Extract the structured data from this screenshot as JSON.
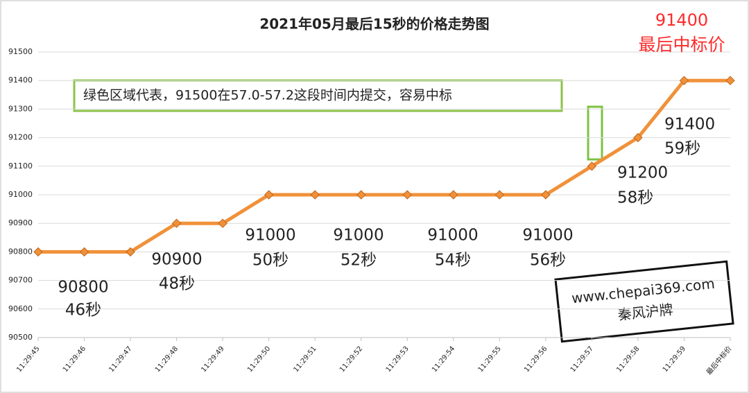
{
  "chart_data": {
    "type": "line",
    "title": "2021年05月最后15秒的价格走势图",
    "categories": [
      "11:29:45",
      "11:29:46",
      "11:29:47",
      "11:29:48",
      "11:29:49",
      "11:29:50",
      "11:29:51",
      "11:29:52",
      "11:29:53",
      "11:29:54",
      "11:29:55",
      "11:29:56",
      "11:29:57",
      "11:29:58",
      "11:29:59",
      "最后中标价"
    ],
    "values": [
      90800,
      90800,
      90800,
      90900,
      90900,
      91000,
      91000,
      91000,
      91000,
      91000,
      91000,
      91000,
      91100,
      91200,
      91400,
      91400
    ],
    "color": "#F0913A",
    "ylim": [
      90500,
      91500
    ],
    "yticks": [
      90500,
      90600,
      90700,
      90800,
      90900,
      91000,
      91100,
      91200,
      91300,
      91400,
      91500
    ],
    "grid": true,
    "annotations": [
      [
        "90800",
        "46秒"
      ],
      [
        "90900",
        "48秒"
      ],
      [
        "91000",
        "50秒"
      ],
      [
        "91000",
        "52秒"
      ],
      [
        "91000",
        "54秒"
      ],
      [
        "91000",
        "56秒"
      ],
      [
        "91200",
        "58秒"
      ],
      [
        "91400",
        "59秒"
      ]
    ],
    "final_label": [
      "91400",
      "最后中标价"
    ],
    "note": "绿色区域代表，91500在57.0-57.2这段时间内提交，容易中标",
    "watermark": [
      "www.chepai369.com",
      "秦风沪牌"
    ]
  }
}
